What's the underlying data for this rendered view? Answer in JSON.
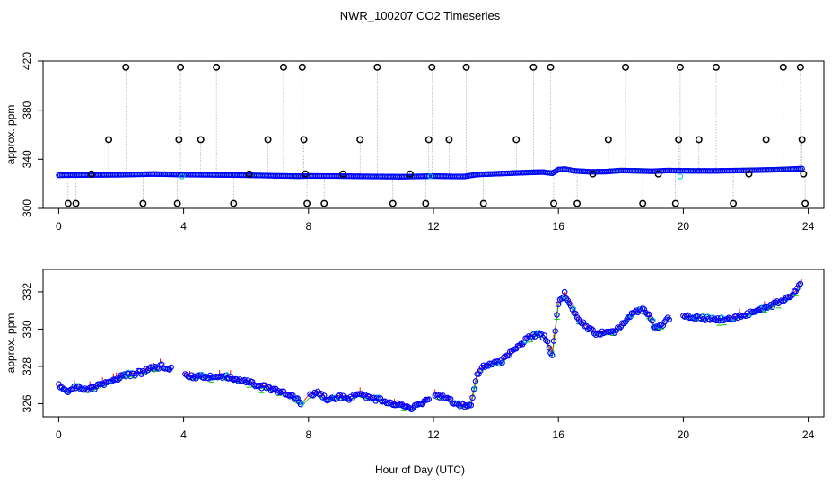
{
  "chart_data": {
    "title": "NWR_100207  CO2 Timeseries",
    "xlabel": "Hour of Day (UTC)",
    "colors": {
      "flagged": "#000000",
      "primary": "#0000ff",
      "secondary": "#00cc00",
      "tertiary": "#ff0000",
      "alternate": "#00cccc",
      "spike_line": "#9a9a9a"
    },
    "panels": [
      {
        "id": "full",
        "type": "scatter",
        "ylabel": "approx. ppm",
        "xlim": [
          -0.5,
          24.5
        ],
        "ylim": [
          300,
          420
        ],
        "xticks": [
          "0",
          "4",
          "8",
          "12",
          "16",
          "20",
          "24"
        ],
        "yticks": [
          "300",
          "340",
          "380",
          "420"
        ],
        "baseline": [
          [
            0,
            327.0
          ],
          [
            1,
            327.2
          ],
          [
            2,
            327.4
          ],
          [
            3,
            328.0
          ],
          [
            3.5,
            327.8
          ],
          [
            4,
            327.5
          ],
          [
            5,
            327.3
          ],
          [
            6,
            327.0
          ],
          [
            7,
            326.5
          ],
          [
            7.7,
            326.2
          ],
          [
            8,
            326.4
          ],
          [
            9,
            326.3
          ],
          [
            10,
            326.0
          ],
          [
            11,
            325.8
          ],
          [
            12,
            326.3
          ],
          [
            12.6,
            326.0
          ],
          [
            13,
            326.0
          ],
          [
            13.4,
            327.6
          ],
          [
            14,
            328.2
          ],
          [
            15,
            329.2
          ],
          [
            15.5,
            329.6
          ],
          [
            15.8,
            328.6
          ],
          [
            16,
            331.6
          ],
          [
            16.2,
            332.0
          ],
          [
            16.5,
            330.6
          ],
          [
            17,
            329.8
          ],
          [
            17.5,
            329.9
          ],
          [
            18,
            330.8
          ],
          [
            18.5,
            330.6
          ],
          [
            19,
            330.2
          ],
          [
            19.5,
            330.8
          ],
          [
            20,
            330.6
          ],
          [
            21,
            330.5
          ],
          [
            22,
            330.9
          ],
          [
            23,
            331.5
          ],
          [
            23.5,
            332.0
          ],
          [
            23.8,
            332.4
          ]
        ],
        "spikes": [
          {
            "x": 0.3,
            "y": 304
          },
          {
            "x": 0.55,
            "y": 304
          },
          {
            "x": 1.05,
            "y": 328
          },
          {
            "x": 1.6,
            "y": 356
          },
          {
            "x": 2.15,
            "y": 415
          },
          {
            "x": 2.7,
            "y": 304
          },
          {
            "x": 3.8,
            "y": 304
          },
          {
            "x": 3.85,
            "y": 356
          },
          {
            "x": 3.9,
            "y": 415
          },
          {
            "x": 4.55,
            "y": 356
          },
          {
            "x": 5.05,
            "y": 415
          },
          {
            "x": 5.6,
            "y": 304
          },
          {
            "x": 6.1,
            "y": 328
          },
          {
            "x": 6.7,
            "y": 356
          },
          {
            "x": 7.2,
            "y": 415
          },
          {
            "x": 7.8,
            "y": 415
          },
          {
            "x": 7.85,
            "y": 356
          },
          {
            "x": 7.9,
            "y": 328
          },
          {
            "x": 7.95,
            "y": 304
          },
          {
            "x": 8.5,
            "y": 304
          },
          {
            "x": 9.1,
            "y": 328
          },
          {
            "x": 9.65,
            "y": 356
          },
          {
            "x": 10.2,
            "y": 415
          },
          {
            "x": 10.7,
            "y": 304
          },
          {
            "x": 11.25,
            "y": 328
          },
          {
            "x": 11.75,
            "y": 304
          },
          {
            "x": 11.85,
            "y": 356
          },
          {
            "x": 11.95,
            "y": 415
          },
          {
            "x": 12.5,
            "y": 356
          },
          {
            "x": 13.05,
            "y": 415
          },
          {
            "x": 13.6,
            "y": 304
          },
          {
            "x": 14.65,
            "y": 356
          },
          {
            "x": 15.2,
            "y": 415
          },
          {
            "x": 15.75,
            "y": 415
          },
          {
            "x": 15.85,
            "y": 304
          },
          {
            "x": 16.6,
            "y": 304
          },
          {
            "x": 17.1,
            "y": 328
          },
          {
            "x": 17.6,
            "y": 356
          },
          {
            "x": 18.15,
            "y": 415
          },
          {
            "x": 18.7,
            "y": 304
          },
          {
            "x": 19.2,
            "y": 328
          },
          {
            "x": 19.75,
            "y": 304
          },
          {
            "x": 19.85,
            "y": 356
          },
          {
            "x": 19.9,
            "y": 415
          },
          {
            "x": 20.5,
            "y": 356
          },
          {
            "x": 21.05,
            "y": 415
          },
          {
            "x": 21.6,
            "y": 304
          },
          {
            "x": 22.1,
            "y": 328
          },
          {
            "x": 22.65,
            "y": 356
          },
          {
            "x": 23.2,
            "y": 415
          },
          {
            "x": 23.75,
            "y": 415
          },
          {
            "x": 23.8,
            "y": 356
          },
          {
            "x": 23.85,
            "y": 328
          },
          {
            "x": 23.9,
            "y": 304
          }
        ]
      },
      {
        "id": "zoom",
        "type": "scatter",
        "ylabel": "approx. ppm",
        "xlim": [
          -0.5,
          24.5
        ],
        "ylim": [
          325.3,
          333.2
        ],
        "xticks": [
          "0",
          "4",
          "8",
          "12",
          "16",
          "20",
          "24"
        ],
        "yticks": [
          "326",
          "328",
          "330",
          "332"
        ],
        "gaps": [
          [
            3.6,
            4.0
          ],
          [
            7.75,
            8.0
          ],
          [
            11.9,
            12.05
          ],
          [
            19.6,
            20.0
          ]
        ],
        "series_points": [
          [
            0.0,
            327.0
          ],
          [
            0.3,
            326.7
          ],
          [
            0.6,
            326.9
          ],
          [
            0.9,
            326.7
          ],
          [
            1.2,
            326.9
          ],
          [
            1.5,
            327.1
          ],
          [
            1.8,
            327.3
          ],
          [
            2.1,
            327.5
          ],
          [
            2.4,
            327.6
          ],
          [
            2.7,
            327.7
          ],
          [
            3.0,
            327.9
          ],
          [
            3.3,
            328.0
          ],
          [
            3.6,
            327.9
          ],
          [
            4.0,
            327.6
          ],
          [
            4.3,
            327.4
          ],
          [
            4.6,
            327.5
          ],
          [
            5.0,
            327.4
          ],
          [
            5.3,
            327.5
          ],
          [
            5.6,
            327.3
          ],
          [
            6.0,
            327.2
          ],
          [
            6.3,
            327.0
          ],
          [
            6.6,
            326.9
          ],
          [
            7.0,
            326.7
          ],
          [
            7.3,
            326.5
          ],
          [
            7.6,
            326.3
          ],
          [
            7.8,
            326.0
          ],
          [
            8.0,
            326.4
          ],
          [
            8.3,
            326.6
          ],
          [
            8.6,
            326.2
          ],
          [
            9.0,
            326.4
          ],
          [
            9.3,
            326.3
          ],
          [
            9.6,
            326.5
          ],
          [
            10.0,
            326.3
          ],
          [
            10.3,
            326.2
          ],
          [
            10.6,
            326.0
          ],
          [
            11.0,
            325.9
          ],
          [
            11.3,
            325.8
          ],
          [
            11.6,
            326.0
          ],
          [
            11.9,
            326.3
          ],
          [
            12.1,
            326.5
          ],
          [
            12.4,
            326.3
          ],
          [
            12.7,
            326.0
          ],
          [
            13.0,
            325.9
          ],
          [
            13.2,
            326.0
          ],
          [
            13.4,
            327.6
          ],
          [
            13.6,
            328.0
          ],
          [
            13.9,
            328.1
          ],
          [
            14.2,
            328.3
          ],
          [
            14.5,
            328.8
          ],
          [
            14.8,
            329.2
          ],
          [
            15.1,
            329.6
          ],
          [
            15.4,
            329.8
          ],
          [
            15.6,
            329.5
          ],
          [
            15.8,
            328.6
          ],
          [
            16.0,
            331.4
          ],
          [
            16.2,
            331.9
          ],
          [
            16.4,
            331.3
          ],
          [
            16.6,
            330.6
          ],
          [
            16.9,
            330.1
          ],
          [
            17.2,
            329.8
          ],
          [
            17.5,
            329.8
          ],
          [
            17.8,
            329.9
          ],
          [
            18.1,
            330.3
          ],
          [
            18.4,
            330.9
          ],
          [
            18.7,
            331.0
          ],
          [
            18.9,
            330.8
          ],
          [
            19.1,
            330.0
          ],
          [
            19.3,
            330.2
          ],
          [
            19.6,
            330.7
          ],
          [
            20.0,
            330.7
          ],
          [
            20.3,
            330.6
          ],
          [
            20.6,
            330.6
          ],
          [
            21.0,
            330.5
          ],
          [
            21.3,
            330.5
          ],
          [
            21.6,
            330.6
          ],
          [
            22.0,
            330.8
          ],
          [
            22.3,
            330.9
          ],
          [
            22.6,
            331.1
          ],
          [
            23.0,
            331.4
          ],
          [
            23.3,
            331.6
          ],
          [
            23.6,
            332.0
          ],
          [
            23.8,
            332.6
          ]
        ]
      }
    ]
  }
}
